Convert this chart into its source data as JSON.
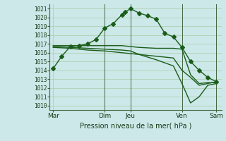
{
  "background_color": "#cce8e8",
  "grid_color": "#aaccaa",
  "line_color": "#1a5c1a",
  "title": "Pression niveau de la mer( hPa )",
  "ylim": [
    1009.5,
    1021.5
  ],
  "yticks": [
    1010,
    1011,
    1012,
    1013,
    1014,
    1015,
    1016,
    1017,
    1018,
    1019,
    1020,
    1021
  ],
  "day_labels": [
    "Mar",
    "",
    "Dim",
    "Jeu",
    "",
    "Ven",
    "",
    "Sam"
  ],
  "day_positions": [
    0,
    1.5,
    3,
    4.5,
    6,
    7.5,
    8.5,
    9.5
  ],
  "xlim": [
    -0.2,
    9.8
  ],
  "vline_positions": [
    3.0,
    4.5,
    7.5,
    9.5
  ],
  "series1_x": [
    0,
    0.5,
    1,
    1.5,
    2,
    2.5,
    3,
    3.5,
    4,
    4.2,
    4.5,
    5,
    5.5,
    6,
    6.5,
    7,
    7.5,
    8,
    8.5,
    9,
    9.5
  ],
  "series1_y": [
    1014.2,
    1015.6,
    1016.7,
    1016.8,
    1017.0,
    1017.5,
    1018.8,
    1019.3,
    1020.3,
    1020.6,
    1021.0,
    1020.5,
    1020.2,
    1019.8,
    1018.2,
    1017.8,
    1016.6,
    1015.0,
    1014.0,
    1013.2,
    1012.7
  ],
  "series2_x": [
    0,
    1,
    2,
    3,
    4,
    4.5,
    5,
    6,
    7,
    7.5,
    8,
    8.5,
    9,
    9.5
  ],
  "series2_y": [
    1016.8,
    1016.8,
    1016.8,
    1016.8,
    1016.8,
    1016.7,
    1016.6,
    1016.5,
    1016.5,
    1016.4,
    1013.5,
    1012.5,
    1012.6,
    1012.6
  ],
  "series3_x": [
    0,
    1,
    2,
    3,
    4,
    4.5,
    5,
    6,
    7,
    7.5,
    8,
    8.5,
    9,
    9.5
  ],
  "series3_y": [
    1016.6,
    1016.5,
    1016.3,
    1016.2,
    1016.0,
    1015.9,
    1015.8,
    1015.6,
    1015.4,
    1014.0,
    1013.2,
    1012.3,
    1012.5,
    1012.7
  ],
  "series4_x": [
    0,
    1,
    2,
    3,
    4,
    4.5,
    5,
    6,
    7,
    7.5,
    8,
    8.5,
    9,
    9.5
  ],
  "series4_y": [
    1016.7,
    1016.6,
    1016.5,
    1016.4,
    1016.3,
    1016.2,
    1015.8,
    1015.2,
    1014.5,
    1012.5,
    1010.3,
    1011.0,
    1012.3,
    1012.5
  ]
}
